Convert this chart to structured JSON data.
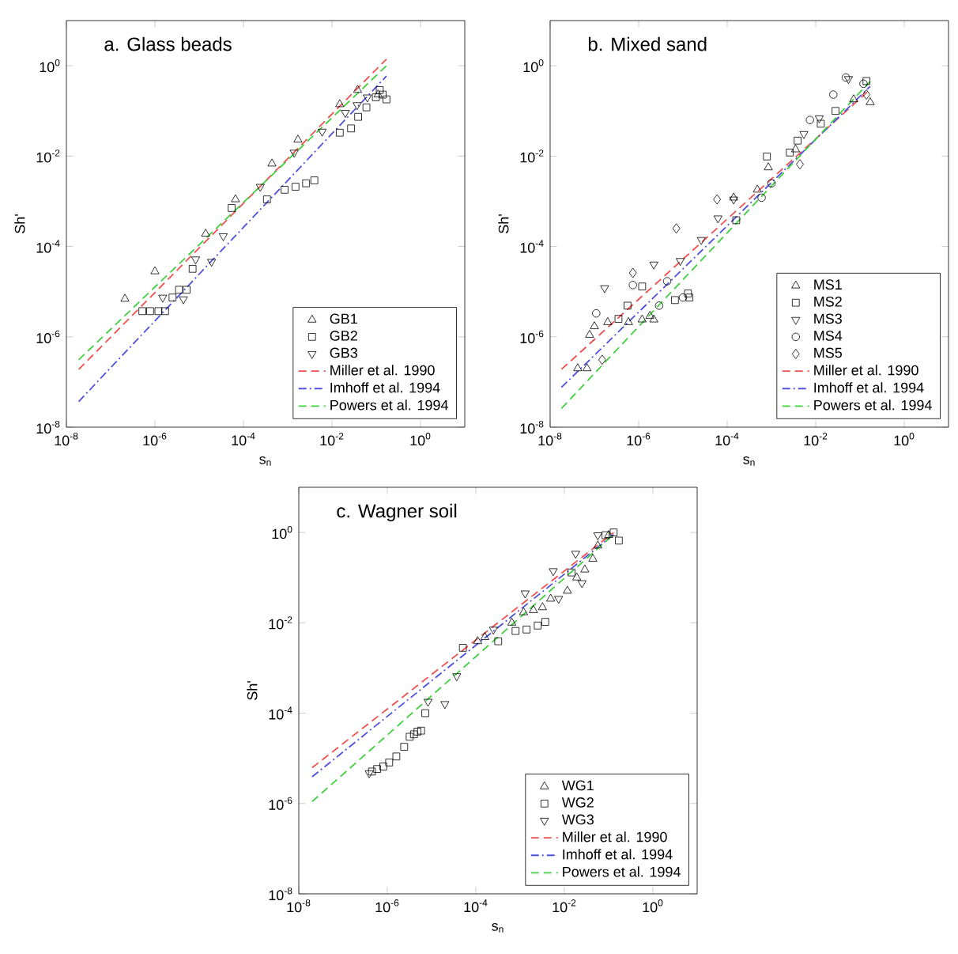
{
  "chart_data": [
    {
      "type": "scatter",
      "title": "a. Glass beads",
      "xlabel": "s$_{n}$",
      "ylabel": "Sh'",
      "log": "xy",
      "legend": "bottom right",
      "xlim": [
        1e-08,
        10
      ],
      "ylim": [
        1e-08,
        10
      ],
      "xticks": [
        {
          "value": 1e-08,
          "label": "10$^{-8}$"
        },
        {
          "value": 1e-06,
          "label": "10$^{-6}$"
        },
        {
          "value": 0.0001,
          "label": "10$^{-4}$"
        },
        {
          "value": 0.01,
          "label": "10$^{-2}$"
        },
        {
          "value": 1,
          "label": "10$^{0}$"
        }
      ],
      "yticks": [
        {
          "value": 1e-08,
          "label": "10$^{-8}$"
        },
        {
          "value": 1e-06,
          "label": "10$^{-6}$"
        },
        {
          "value": 0.0001,
          "label": "10$^{-4}$"
        },
        {
          "value": 0.01,
          "label": "10$^{-2}$"
        },
        {
          "value": 1,
          "label": "10$^{0}$"
        }
      ],
      "series": [
        {
          "name": "GB1",
          "color": "#000000",
          "marker": "triangle",
          "x": [
            2.1e-07,
            1e-06,
            1.4e-05,
            6.6e-05,
            0.00044,
            0.0017,
            0.015,
            0.038,
            0.11
          ],
          "values": [
            6.9e-06,
            2.8e-05,
            0.00019,
            0.0011,
            0.0068,
            0.023,
            0.14,
            0.29,
            0.23
          ]
        },
        {
          "name": "GB2",
          "color": "#000000",
          "marker": "square",
          "x": [
            5.2e-07,
            7.8e-07,
            1.2e-06,
            1.7e-06,
            2.5e-06,
            3.5e-06,
            5.2e-06,
            7.1e-06,
            5.4e-05,
            0.00034,
            0.00085,
            0.0015,
            0.0026,
            0.004,
            0.015,
            0.027,
            0.039,
            0.06,
            0.098,
            0.14,
            0.17,
            0.12
          ],
          "values": [
            3.7e-06,
            3.7e-06,
            3.7e-06,
            3.7e-06,
            7.4e-06,
            1.1e-05,
            1.1e-05,
            3.2e-05,
            0.00071,
            0.0011,
            0.0018,
            0.0021,
            0.0025,
            0.0029,
            0.033,
            0.041,
            0.074,
            0.12,
            0.2,
            0.23,
            0.18,
            0.29
          ]
        },
        {
          "name": "GB3",
          "color": "#000000",
          "marker": "triangle down",
          "x": [
            1.5e-06,
            4.4e-06,
            8.3e-06,
            1.9e-05,
            3.5e-05,
            0.00024,
            0.0014,
            0.006,
            0.02,
            0.037,
            0.063
          ],
          "values": [
            7.4e-06,
            6.8e-06,
            5.2e-05,
            4.6e-05,
            0.00017,
            0.0021,
            0.012,
            0.035,
            0.091,
            0.135,
            0.2
          ]
        },
        {
          "name": "Miller et al. 1990",
          "type": "line",
          "color": "#f05050",
          "line_style": "dashed",
          "x": [
            1.9e-08,
            0.17
          ],
          "values": [
            1.9e-07,
            1.4
          ]
        },
        {
          "name": "Imhoff et al. 1994",
          "type": "line",
          "color": "#5050e0",
          "line_style": "dashdot",
          "x": [
            1.9e-08,
            0.17
          ],
          "values": [
            3.7e-08,
            0.59
          ]
        },
        {
          "name": "Powers et al. 1994",
          "type": "line",
          "color": "#40d040",
          "line_style": "dashed",
          "x": [
            1.9e-08,
            0.17
          ],
          "values": [
            3.1e-07,
            1.0
          ]
        }
      ]
    },
    {
      "type": "scatter",
      "title": "b. Mixed sand",
      "xlabel": "s$_{n}$",
      "ylabel": "Sh'",
      "log": "xy",
      "legend": "bottom right",
      "xlim": [
        1e-08,
        10
      ],
      "ylim": [
        1e-08,
        10
      ],
      "xticks": [
        {
          "value": 1e-08,
          "label": "10$^{-8}$"
        },
        {
          "value": 1e-06,
          "label": "10$^{-6}$"
        },
        {
          "value": 0.0001,
          "label": "10$^{-4}$"
        },
        {
          "value": 0.01,
          "label": "10$^{-2}$"
        },
        {
          "value": 1,
          "label": "10$^{0}$"
        }
      ],
      "yticks": [
        {
          "value": 1e-08,
          "label": "10$^{-8}$"
        },
        {
          "value": 1e-06,
          "label": "10$^{-6}$"
        },
        {
          "value": 0.0001,
          "label": "10$^{-4}$"
        },
        {
          "value": 0.01,
          "label": "10$^{-2}$"
        },
        {
          "value": 1,
          "label": "10$^{0}$"
        }
      ],
      "series": [
        {
          "name": "MS1",
          "color": "#000000",
          "marker": "triangle",
          "x": [
            4.2e-08,
            6.8e-08,
            7.8e-08,
            1e-07,
            2e-07,
            5.9e-07,
            1.2e-06,
            1.8e-06,
            2.2e-06,
            0.00014,
            0.00048,
            0.00085,
            0.0035,
            0.072,
            0.17
          ],
          "values": [
            2e-07,
            2e-07,
            1.1e-06,
            1.7e-06,
            2.1e-06,
            2.1e-06,
            2.4e-06,
            2.9e-06,
            2.4e-06,
            0.0012,
            0.0018,
            0.0056,
            0.014,
            0.18,
            0.155
          ]
        },
        {
          "name": "MS2",
          "color": "#000000",
          "marker": "square",
          "x": [
            3.5e-07,
            5.6e-07,
            1.2e-06,
            6.6e-06,
            1.3e-05,
            1.4e-05,
            0.00016,
            0.00079,
            0.0026,
            0.0039,
            0.013,
            0.028,
            0.14
          ],
          "values": [
            2.5e-06,
            4.9e-06,
            1.3e-05,
            6.5e-06,
            9.1e-06,
            7.4e-06,
            0.00038,
            0.0098,
            0.012,
            0.022,
            0.052,
            0.1,
            0.46
          ]
        },
        {
          "name": "MS3",
          "color": "#000000",
          "marker": "triangle down",
          "x": [
            1.7e-07,
            2.2e-06,
            8.7e-06,
            2.6e-05,
            6.2e-05,
            0.00014,
            0.0054,
            0.012,
            0.055
          ],
          "values": [
            1.2e-05,
            4e-05,
            4.8e-05,
            0.00014,
            0.00042,
            0.0011,
            0.031,
            0.069,
            0.51
          ]
        },
        {
          "name": "MS4",
          "color": "#000000",
          "marker": "circle",
          "x": [
            1.1e-07,
            7.4e-07,
            4.4e-06,
            1e-05,
            2.9e-06,
            0.0006,
            0.001,
            0.0074,
            0.025,
            0.048,
            0.12
          ],
          "values": [
            3.3e-06,
            1.4e-05,
            1.7e-05,
            7.4e-06,
            4.9e-06,
            0.0012,
            0.0025,
            0.063,
            0.23,
            0.55,
            0.4
          ]
        },
        {
          "name": "MS5",
          "color": "#000000",
          "marker": "diamond",
          "x": [
            1.5e-07,
            7.4e-07,
            7.1e-06,
            5.9e-05,
            0.0044,
            0.14
          ],
          "values": [
            3.1e-07,
            2.6e-05,
            0.00025,
            0.0011,
            0.0066,
            0.23
          ]
        },
        {
          "name": "Miller et al. 1990",
          "type": "line",
          "color": "#f05050",
          "line_style": "dashed",
          "x": [
            1.8e-08,
            0.17
          ],
          "values": [
            1.9e-07,
            0.3
          ]
        },
        {
          "name": "Imhoff et al. 1994",
          "type": "line",
          "color": "#5050e0",
          "line_style": "dashdot",
          "x": [
            1.8e-08,
            0.17
          ],
          "values": [
            7.6e-08,
            0.35
          ]
        },
        {
          "name": "Powers et al. 1994",
          "type": "line",
          "color": "#40d040",
          "line_style": "dashed",
          "x": [
            1.8e-08,
            0.17
          ],
          "values": [
            2.6e-08,
            0.45
          ]
        }
      ]
    },
    {
      "type": "scatter",
      "title": "c. Wagner soil",
      "xlabel": "s$_{n}$",
      "ylabel": "Sh'",
      "log": "xy",
      "legend": "bottom right",
      "xlim": [
        1e-08,
        10
      ],
      "ylim": [
        1e-08,
        10
      ],
      "xticks": [
        {
          "value": 1e-08,
          "label": "10$^{-8}$"
        },
        {
          "value": 1e-06,
          "label": "10$^{-6}$"
        },
        {
          "value": 0.0001,
          "label": "10$^{-4}$"
        },
        {
          "value": 0.01,
          "label": "10$^{-2}$"
        },
        {
          "value": 1,
          "label": "10$^{0}$"
        }
      ],
      "yticks": [
        {
          "value": 1e-08,
          "label": "10$^{-8}$"
        },
        {
          "value": 1e-06,
          "label": "10$^{-6}$"
        },
        {
          "value": 0.0001,
          "label": "10$^{-4}$"
        },
        {
          "value": 0.01,
          "label": "10$^{-2}$"
        },
        {
          "value": 1,
          "label": "10$^{0}$"
        }
      ],
      "series": [
        {
          "name": "WG1",
          "color": "#000000",
          "marker": "triangle",
          "x": [
            0.00011,
            0.00016,
            0.00065,
            0.0012,
            0.002,
            0.0032,
            0.0049,
            0.0117,
            0.019,
            0.029,
            0.044,
            0.057,
            0.1
          ],
          "values": [
            0.0039,
            0.0048,
            0.01,
            0.017,
            0.019,
            0.022,
            0.034,
            0.051,
            0.1,
            0.15,
            0.26,
            0.51,
            0.87
          ]
        },
        {
          "name": "WG2",
          "color": "#000000",
          "marker": "square",
          "x": [
            4.5e-07,
            5.9e-07,
            8.1e-07,
            1.1e-06,
            1.6e-06,
            2.4e-06,
            3.2e-06,
            4e-06,
            4.8e-06,
            5.8e-06,
            7.2e-06,
            5.1e-05,
            0.00032,
            0.00079,
            0.0014,
            0.0025,
            0.0037,
            0.0145,
            0.13,
            0.085,
            0.17
          ],
          "values": [
            5.1e-06,
            5.8e-06,
            6.6e-06,
            8.1e-06,
            1.1e-05,
            1.8e-05,
            3e-05,
            3.4e-05,
            3.9e-05,
            4.1e-05,
            0.0001,
            0.0028,
            0.0039,
            0.0066,
            0.0071,
            0.0087,
            0.0105,
            0.13,
            1.0,
            0.87,
            0.66
          ]
        },
        {
          "name": "WG3",
          "color": "#000000",
          "marker": "triangle down",
          "x": [
            3.9e-07,
            8.3e-06,
            2e-05,
            3.7e-05,
            0.00025,
            0.0013,
            0.0056,
            0.018,
            0.0074,
            0.025,
            0.057
          ],
          "values": [
            4.7e-06,
            0.00018,
            0.00016,
            0.00066,
            0.0071,
            0.045,
            0.14,
            0.34,
            0.034,
            0.076,
            0.87
          ]
        },
        {
          "name": "Miller et al. 1990",
          "type": "line",
          "color": "#f05050",
          "line_style": "dashed",
          "x": [
            2e-08,
            0.13
          ],
          "values": [
            6.2e-06,
            1.0
          ]
        },
        {
          "name": "Imhoff et al. 1994",
          "type": "line",
          "color": "#5050e0",
          "line_style": "dashdot",
          "x": [
            2e-08,
            0.13
          ],
          "values": [
            3.9e-06,
            0.9
          ]
        },
        {
          "name": "Powers et al. 1994",
          "type": "line",
          "color": "#40d040",
          "line_style": "dashed",
          "x": [
            2e-08,
            0.13
          ],
          "values": [
            1.1e-06,
            0.9
          ]
        }
      ]
    }
  ]
}
